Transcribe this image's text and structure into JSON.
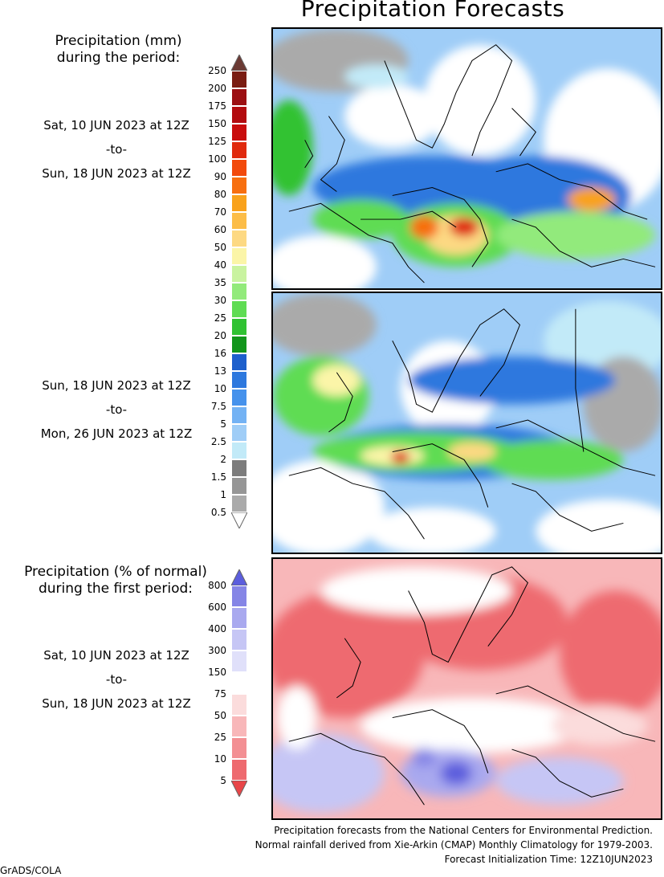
{
  "title": "Precipitation Forecasts",
  "mm_legend": {
    "heading": [
      "Precipitation (mm)",
      "during the period:"
    ],
    "ticks": [
      "250",
      "200",
      "175",
      "150",
      "125",
      "100",
      "90",
      "80",
      "70",
      "60",
      "50",
      "40",
      "35",
      "30",
      "25",
      "20",
      "16",
      "13",
      "10",
      "7.5",
      "5",
      "2.5",
      "2",
      "1.5",
      "1",
      "0.5"
    ],
    "colors": [
      "#7a1c12",
      "#9c0f12",
      "#b30b0f",
      "#c90d0d",
      "#e0290d",
      "#f24a0c",
      "#f76f10",
      "#f9a21b",
      "#fcbd48",
      "#fdd983",
      "#fbf5a8",
      "#c9f3a0",
      "#92ea7b",
      "#5fdc53",
      "#30c232",
      "#12961b",
      "#1d5fcc",
      "#2d78de",
      "#4692ec",
      "#73b2f4",
      "#9fcdf7",
      "#c2eaf8",
      "#7c7c7c",
      "#969696",
      "#aaaaaa",
      "#c8c8c8"
    ]
  },
  "pct_legend": {
    "heading": [
      "Precipitation (% of normal)",
      "during the first period:"
    ],
    "ticks": [
      "800",
      "600",
      "400",
      "300",
      "150",
      "75",
      "50",
      "25",
      "10",
      "5"
    ],
    "colors": [
      "#5b5ddd",
      "#8585e6",
      "#a9a9ef",
      "#c6c6f5",
      "#e0e0fa",
      "#ffffff",
      "#fbdcdc",
      "#f8b7b9",
      "#f38f93",
      "#ee6a6f",
      "#e84548"
    ]
  },
  "periods": [
    {
      "start": "Sat, 10 JUN 2023 at 12Z",
      "sep": "-to-",
      "end": "Sun, 18 JUN 2023 at 12Z"
    },
    {
      "start": "Sun, 18 JUN 2023 at 12Z",
      "sep": "-to-",
      "end": "Mon, 26 JUN 2023 at 12Z"
    },
    {
      "start": "Sat, 10 JUN 2023 at 12Z",
      "sep": "-to-",
      "end": "Sun, 18 JUN 2023 at 12Z"
    }
  ],
  "footer": {
    "line1": "Precipitation forecasts from the National Centers for Environmental Prediction.",
    "line2": "Normal rainfall derived from Xie-Arkin (CMAP) Monthly Climatology for 1979-2003.",
    "line3": "Forecast Initialization Time: 12Z10JUN2023"
  },
  "credit": "GrADS/COLA"
}
